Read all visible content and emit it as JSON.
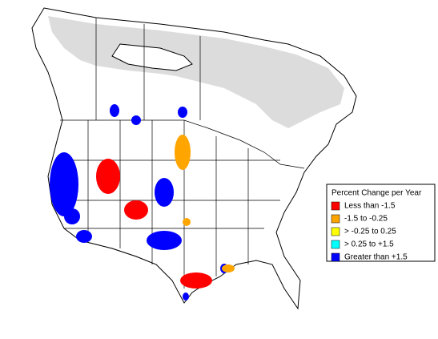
{
  "legend": {
    "title": "Percent Change per Year",
    "items": [
      {
        "label": "Less than -1.5",
        "color": "#ff0000"
      },
      {
        "label": "-1.5 to -0.25",
        "color": "#ffa500"
      },
      {
        "label": "> -0.25 to 0.25",
        "color": "#ffff00"
      },
      {
        "label": "> 0.25 to +1.5",
        "color": "#00ffff"
      },
      {
        "label": "Greater than +1.5",
        "color": "#0000ff"
      }
    ]
  }
}
